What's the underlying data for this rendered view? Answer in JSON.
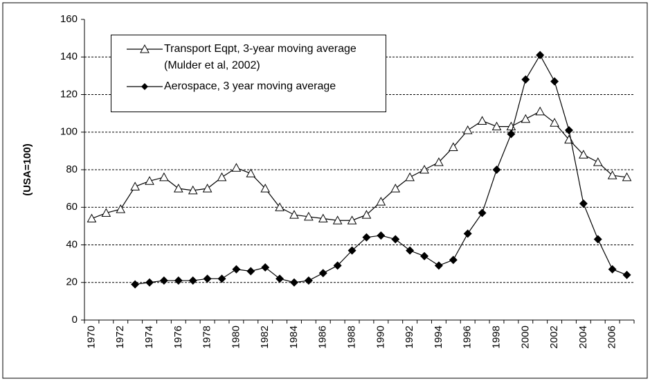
{
  "chart_data": {
    "type": "line",
    "y_label": "(USA=100)",
    "categories": [
      "1970",
      null,
      "1972",
      null,
      "1974",
      null,
      "1976",
      null,
      "1978",
      null,
      "1980",
      null,
      "1982",
      null,
      "1984",
      null,
      "1986",
      null,
      "1988",
      null,
      "1990",
      null,
      "1992",
      null,
      "1994",
      null,
      "1996",
      null,
      "1998",
      null,
      "2000",
      null,
      "2002",
      null,
      "2004",
      null,
      "2006",
      null
    ],
    "series": [
      {
        "name": "Transport Eqpt, 3-year moving average (Mulder et al, 2002)",
        "color": "#000000",
        "marker": "triangle-open",
        "values": [
          54,
          57,
          59,
          71,
          74,
          76,
          70,
          69,
          70,
          76,
          81,
          78,
          70,
          60,
          56,
          55,
          54,
          53,
          53,
          56,
          63,
          70,
          76,
          80,
          84,
          92,
          101,
          106,
          103,
          103,
          107,
          111,
          105,
          96,
          88,
          84,
          77,
          76
        ]
      },
      {
        "name": "Aerospace, 3 year moving average",
        "color": "#000000",
        "marker": "diamond-filled",
        "values": [
          null,
          null,
          null,
          19,
          20,
          21,
          21,
          21,
          22,
          22,
          27,
          26,
          28,
          22,
          20,
          21,
          25,
          29,
          37,
          44,
          45,
          43,
          37,
          34,
          29,
          32,
          46,
          57,
          80,
          99,
          128,
          141,
          127,
          101,
          62,
          43,
          27,
          24
        ]
      }
    ],
    "ylim": [
      0,
      160
    ],
    "yticks": [
      0,
      20,
      40,
      60,
      80,
      100,
      120,
      140,
      160
    ],
    "grid": true
  }
}
